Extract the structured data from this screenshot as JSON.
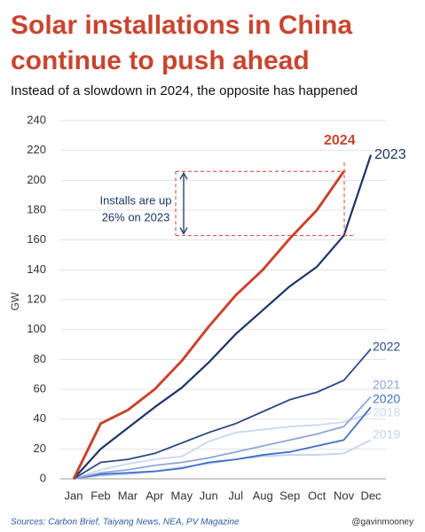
{
  "chart_data": {
    "type": "line",
    "title_lines": [
      "Solar installations in China",
      "continue to push ahead"
    ],
    "subtitle": "Instead of a slowdown in 2024, the opposite has happened",
    "y_label": "GW",
    "categories": [
      "Jan",
      "Feb",
      "Mar",
      "Apr",
      "May",
      "Jun",
      "Jul",
      "Aug",
      "Sep",
      "Oct",
      "Nov",
      "Dec"
    ],
    "series": [
      {
        "name": "2019",
        "color": "#c3d3ef",
        "values": [
          0,
          2,
          3,
          5,
          8,
          10,
          13,
          15,
          16,
          16,
          17,
          26
        ]
      },
      {
        "name": "2018",
        "color": "#c9d8f0",
        "values": [
          0,
          6,
          10,
          13,
          15,
          25,
          31,
          33,
          35,
          36,
          38,
          44
        ]
      },
      {
        "name": "2020",
        "color": "#3f6fc7",
        "values": [
          0,
          3,
          4,
          5,
          7,
          11,
          13,
          16,
          18,
          22,
          26,
          48
        ]
      },
      {
        "name": "2021",
        "color": "#8ea4d8",
        "values": [
          0,
          4,
          6,
          9,
          11,
          14,
          18,
          22,
          26,
          30,
          35,
          55
        ]
      },
      {
        "name": "2022",
        "color": "#2c4886",
        "values": [
          0,
          11,
          13,
          17,
          24,
          31,
          37,
          45,
          53,
          58,
          66,
          87
        ]
      },
      {
        "name": "2023",
        "color": "#1c3566",
        "values": [
          0,
          20,
          34,
          48,
          61,
          78,
          97,
          113,
          129,
          142,
          163,
          217
        ]
      },
      {
        "name": "2024",
        "color": "#c8452f",
        "values": [
          0,
          37,
          46,
          60,
          79,
          102,
          123,
          140,
          161,
          180,
          206,
          null
        ]
      }
    ],
    "annotation_lines": [
      "Installs are up",
      "26% on 2023"
    ],
    "ylim": [
      0,
      240
    ],
    "yticks": [
      0,
      20,
      40,
      60,
      80,
      100,
      120,
      140,
      160,
      180,
      200,
      220,
      240
    ],
    "grid": true,
    "source": "Sources: Carbon Brief, Taiyang News, NEA, PV Magazine",
    "credit": "@gavinmooney"
  }
}
